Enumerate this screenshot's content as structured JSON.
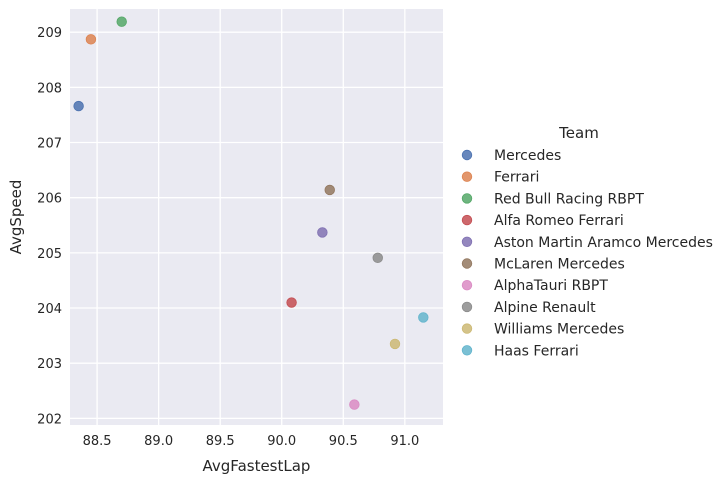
{
  "chart_data": {
    "type": "scatter",
    "xlabel": "AvgFastestLap",
    "ylabel": "AvgSpeed",
    "xlim": [
      88.28,
      91.31
    ],
    "ylim": [
      201.88,
      209.42
    ],
    "xticks": [
      "88.5",
      "89.0",
      "89.5",
      "90.0",
      "90.5",
      "91.0"
    ],
    "yticks": [
      "202",
      "203",
      "204",
      "205",
      "206",
      "207",
      "208",
      "209"
    ],
    "grid": true,
    "legend": {
      "title": "Team",
      "placement": "right"
    },
    "series": [
      {
        "name": "Mercedes",
        "color": "#4c72b0",
        "x": [
          88.35
        ],
        "y": [
          207.66
        ]
      },
      {
        "name": "Ferrari",
        "color": "#dd8452",
        "x": [
          88.45
        ],
        "y": [
          208.87
        ]
      },
      {
        "name": "Red Bull Racing RBPT",
        "color": "#55a868",
        "x": [
          88.7
        ],
        "y": [
          209.19
        ]
      },
      {
        "name": "Alfa Romeo Ferrari",
        "color": "#c44e52",
        "x": [
          90.08
        ],
        "y": [
          204.1
        ]
      },
      {
        "name": "Aston Martin Aramco Mercedes",
        "color": "#8172b3",
        "x": [
          90.33
        ],
        "y": [
          205.37
        ]
      },
      {
        "name": "McLaren Mercedes",
        "color": "#937860",
        "x": [
          90.39
        ],
        "y": [
          206.14
        ]
      },
      {
        "name": "AlphaTauri RBPT",
        "color": "#da8bc3",
        "x": [
          90.59
        ],
        "y": [
          202.25
        ]
      },
      {
        "name": "Alpine Renault",
        "color": "#8c8c8c",
        "x": [
          90.78
        ],
        "y": [
          204.91
        ]
      },
      {
        "name": "Williams Mercedes",
        "color": "#ccb974",
        "x": [
          90.92
        ],
        "y": [
          203.35
        ]
      },
      {
        "name": "Haas Ferrari",
        "color": "#64b5cd",
        "x": [
          91.15
        ],
        "y": [
          203.83
        ]
      }
    ]
  }
}
